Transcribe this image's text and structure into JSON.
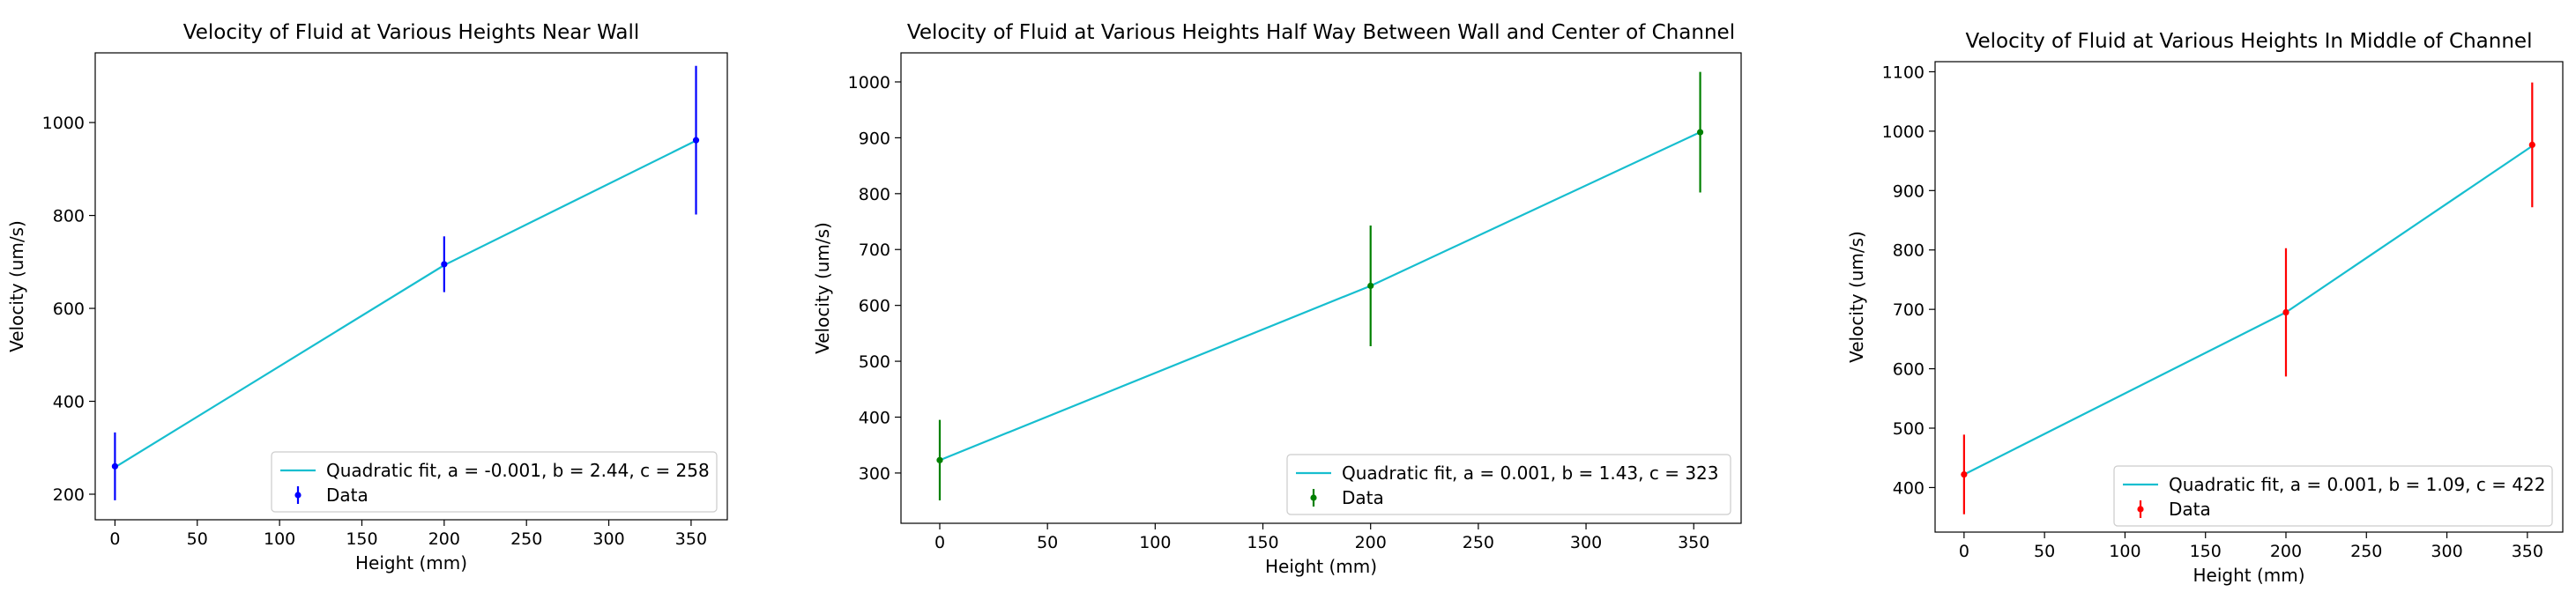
{
  "chart_data": [
    {
      "type": "line",
      "title": "Velocity of Fluid at Various Heights Near Wall",
      "xlabel": "Height (mm)",
      "ylabel": "Velocity (um/s)",
      "xlim": [
        -12,
        372
      ],
      "ylim": [
        145,
        1150
      ],
      "xticks": [
        0,
        50,
        100,
        150,
        200,
        250,
        300,
        350
      ],
      "yticks": [
        200,
        400,
        600,
        800,
        1000
      ],
      "grid": false,
      "legend_position": "lower-right",
      "colors": {
        "fit": "#17becf",
        "data": "#0000ff"
      },
      "series": [
        {
          "name": "Quadratic fit, a = -0.001, b = 2.44, c = 258",
          "kind": "line",
          "x": [
            0,
            200,
            353
          ],
          "y": [
            258,
            693,
            961
          ]
        },
        {
          "name": "Data",
          "kind": "errorbar",
          "x": [
            0,
            200,
            353
          ],
          "y": [
            260,
            695,
            962
          ],
          "yerr": [
            73,
            60,
            160
          ]
        }
      ]
    },
    {
      "type": "line",
      "title": "Velocity of Fluid at Various Heights Half Way Between Wall and Center of Channel",
      "xlabel": "Height (mm)",
      "ylabel": "Velocity (um/s)",
      "xlim": [
        -18,
        372
      ],
      "ylim": [
        210,
        1052
      ],
      "xticks": [
        0,
        50,
        100,
        150,
        200,
        250,
        300,
        350
      ],
      "yticks": [
        300,
        400,
        500,
        600,
        700,
        800,
        900,
        1000
      ],
      "grid": false,
      "legend_position": "lower-right",
      "colors": {
        "fit": "#17becf",
        "data": "#008000"
      },
      "series": [
        {
          "name": "Quadratic fit, a = 0.001, b = 1.43, c = 323",
          "kind": "line",
          "x": [
            0,
            200,
            353
          ],
          "y": [
            323,
            635,
            910
          ]
        },
        {
          "name": "Data",
          "kind": "errorbar",
          "x": [
            0,
            200,
            353
          ],
          "y": [
            323,
            635,
            910
          ],
          "yerr": [
            72,
            108,
            108
          ]
        }
      ]
    },
    {
      "type": "line",
      "title": "Velocity of Fluid at Various Heights In Middle of Channel",
      "xlabel": "Height (mm)",
      "ylabel": "Velocity (um/s)",
      "xlim": [
        -18,
        372
      ],
      "ylim": [
        325,
        1117
      ],
      "xticks": [
        0,
        50,
        100,
        150,
        200,
        250,
        300,
        350
      ],
      "yticks": [
        400,
        500,
        600,
        700,
        800,
        900,
        1000,
        1100
      ],
      "grid": false,
      "legend_position": "lower-right",
      "colors": {
        "fit": "#17becf",
        "data": "#ff0000"
      },
      "series": [
        {
          "name": "Quadratic fit, a = 0.001, b = 1.09, c = 422",
          "kind": "line",
          "x": [
            0,
            200,
            353
          ],
          "y": [
            422,
            695,
            975
          ]
        },
        {
          "name": "Data",
          "kind": "errorbar",
          "x": [
            0,
            200,
            353
          ],
          "y": [
            422,
            695,
            977
          ],
          "yerr": [
            67,
            108,
            105
          ]
        }
      ]
    }
  ]
}
